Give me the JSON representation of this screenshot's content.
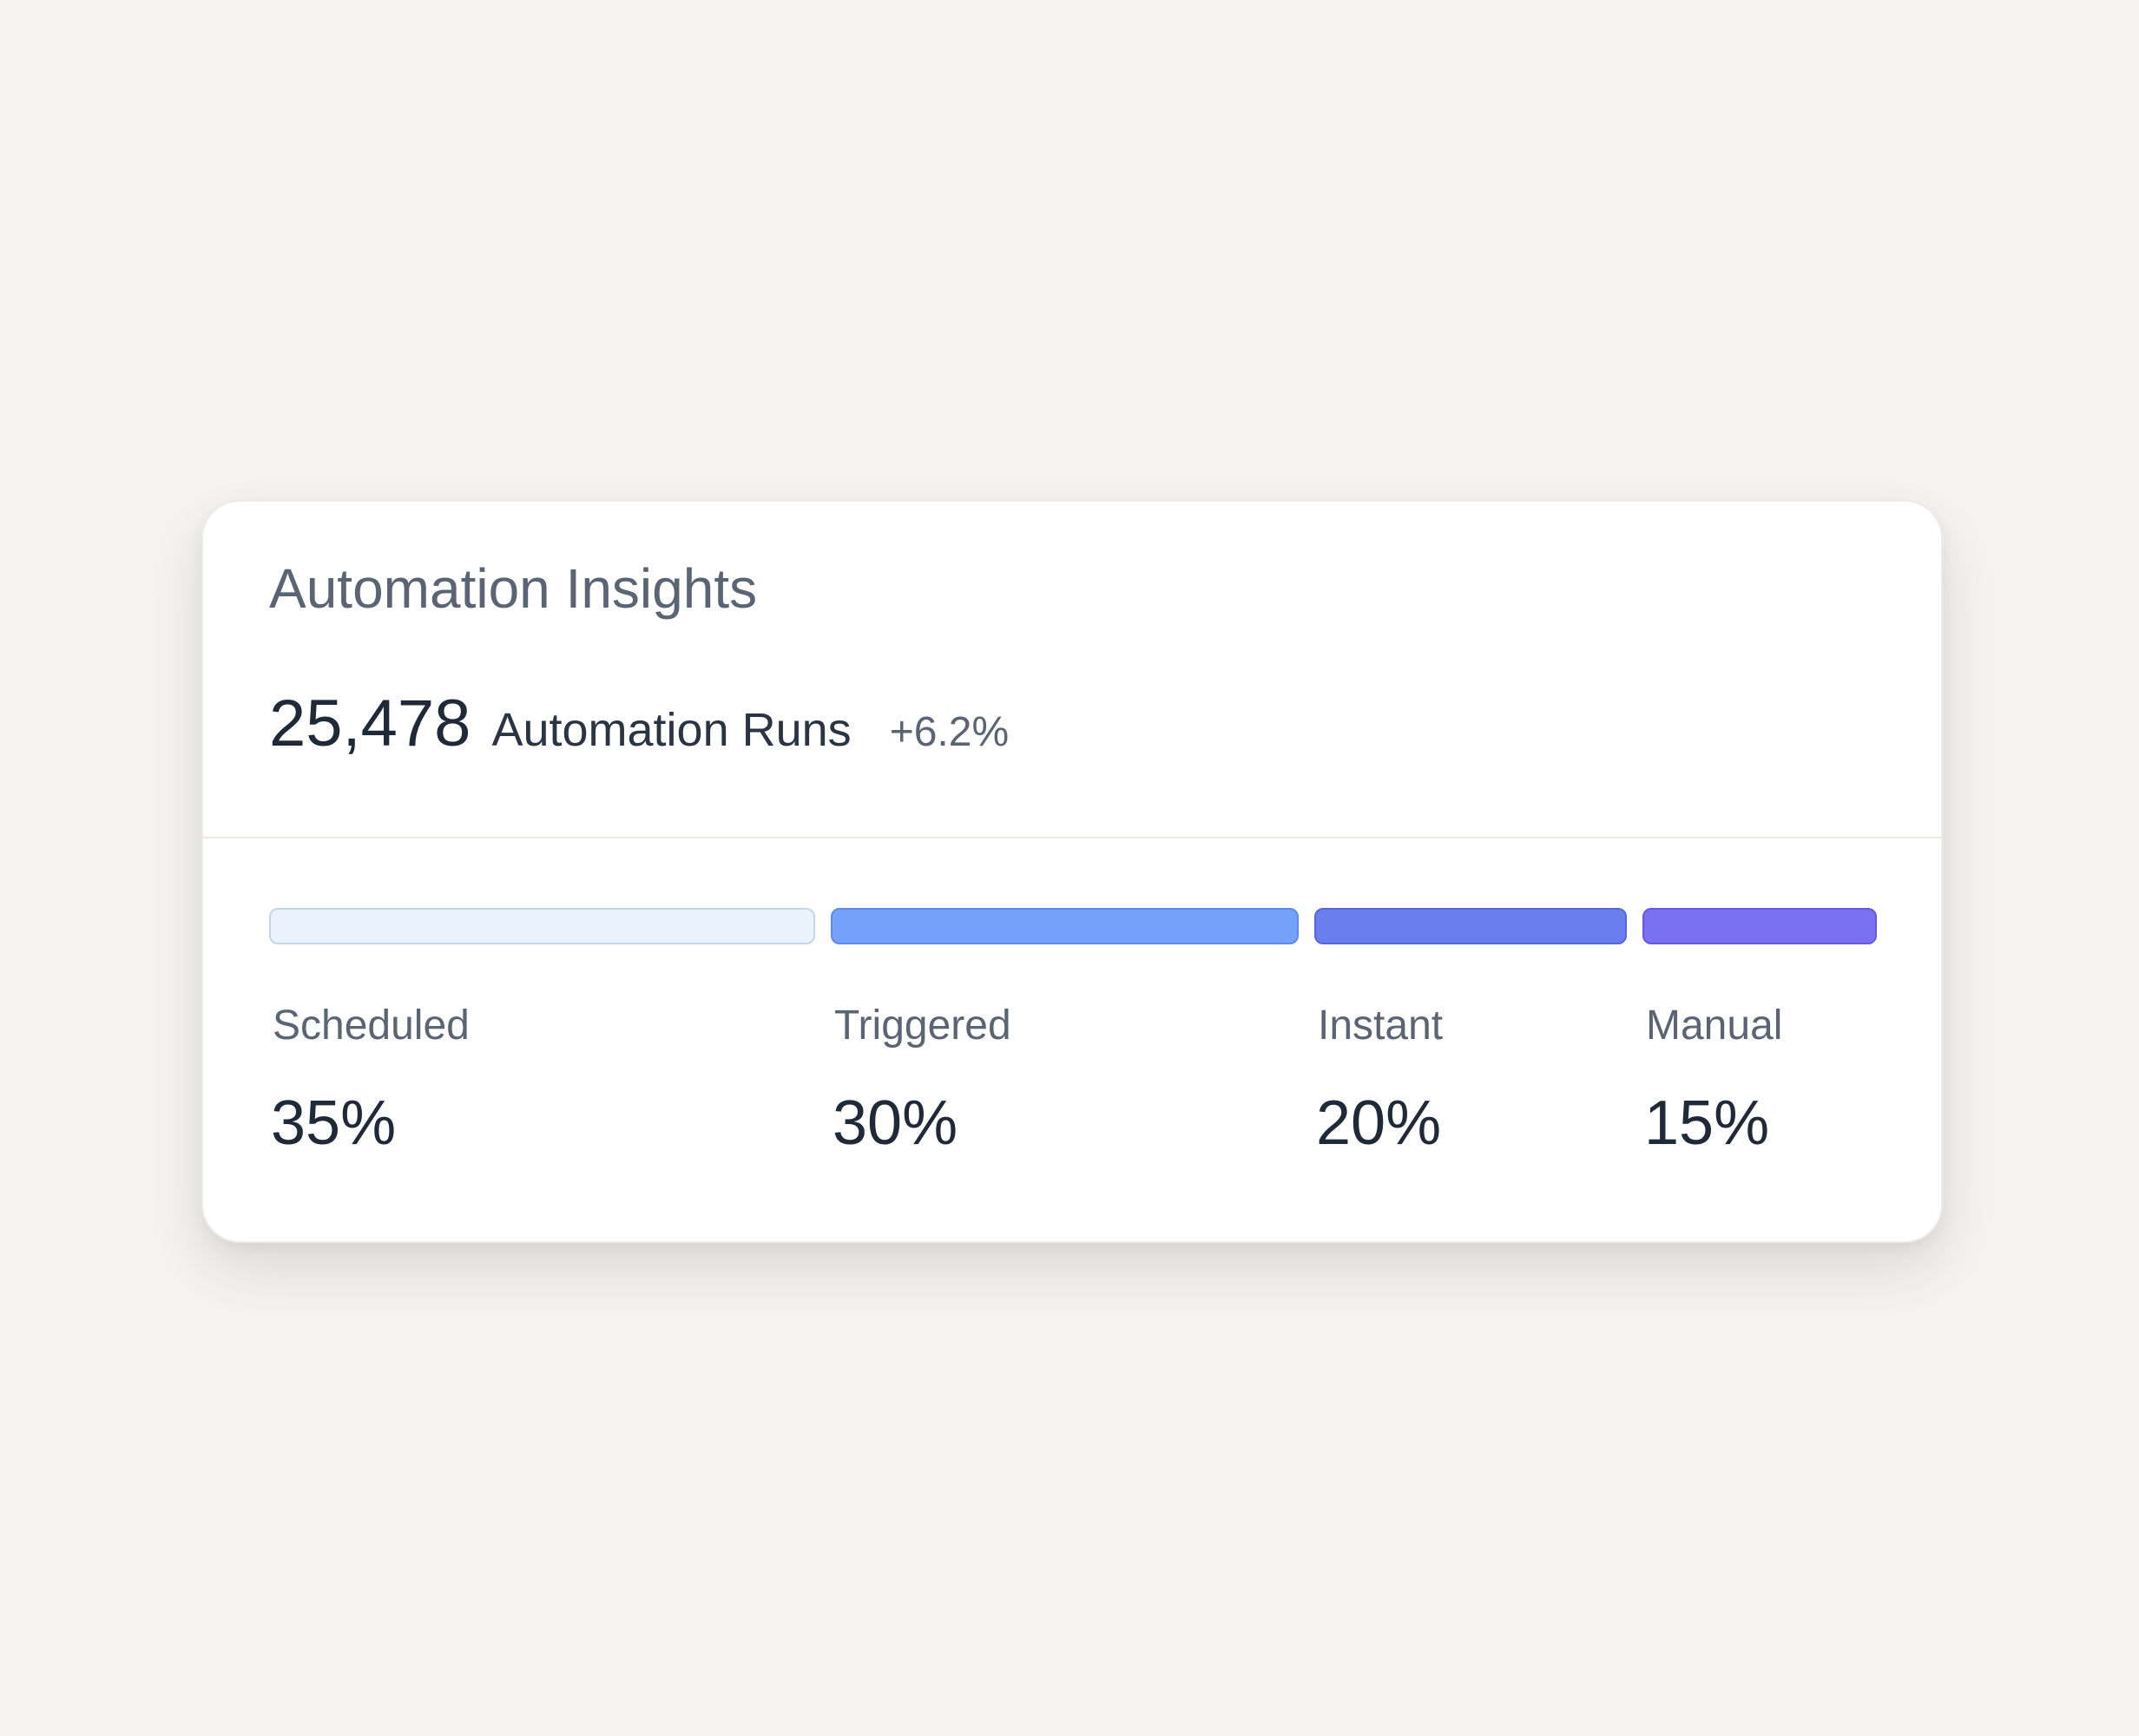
{
  "card": {
    "title": "Automation Insights",
    "total_runs": "25,478",
    "runs_label": "Automation Runs",
    "change": "+6.2%"
  },
  "segments": [
    {
      "label": "Scheduled",
      "value": "35%",
      "share": 35,
      "color": "#eaf3fc",
      "border": "#c6d4e6"
    },
    {
      "label": "Triggered",
      "value": "30%",
      "share": 30,
      "color": "#74a2fb",
      "border": "#5e8bea"
    },
    {
      "label": "Instant",
      "value": "20%",
      "share": 20,
      "color": "#6a7eee",
      "border": "#5567d9"
    },
    {
      "label": "Manual",
      "value": "15%",
      "share": 15,
      "color": "#7a70f2",
      "border": "#6659e0"
    }
  ]
}
